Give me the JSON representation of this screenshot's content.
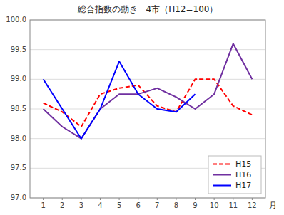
{
  "chart_data": {
    "type": "line",
    "title": "総合指数の動き　4市（H12=100）",
    "x_label": "月",
    "x": [
      1,
      2,
      3,
      4,
      5,
      6,
      7,
      8,
      9,
      10,
      11,
      12
    ],
    "xlim": [
      0.3,
      12.7
    ],
    "xticks": [
      1,
      2,
      3,
      4,
      5,
      6,
      7,
      8,
      9,
      10,
      11,
      12
    ],
    "ylim": [
      97.0,
      100.0
    ],
    "yticks": [
      {
        "value": 97.0,
        "label": "97.0"
      },
      97.5,
      {
        "value": 98.0,
        "label": "98.0"
      },
      98.5,
      {
        "value": 99.0,
        "label": "99.0"
      },
      99.5,
      {
        "value": 100.0,
        "label": "100.0"
      }
    ],
    "grid": "y",
    "legend": "lower right",
    "series": [
      {
        "name": "H15",
        "color": "#ff0000",
        "line_style": "dashed",
        "values": [
          98.6,
          98.45,
          98.2,
          98.75,
          98.85,
          98.9,
          98.55,
          98.45,
          99.0,
          99.0,
          98.55,
          98.4
        ]
      },
      {
        "name": "H16",
        "color": "#7030a0",
        "line_style": "solid",
        "values": [
          98.5,
          98.2,
          98.0,
          98.5,
          98.75,
          98.75,
          98.85,
          98.7,
          98.5,
          98.75,
          99.6,
          99.0
        ]
      },
      {
        "name": "H17",
        "color": "#0000ff",
        "line_style": "solid",
        "values": [
          99.0,
          98.5,
          98.0,
          98.5,
          99.3,
          98.75,
          98.5,
          98.45,
          98.75,
          null,
          null,
          null
        ]
      }
    ]
  }
}
